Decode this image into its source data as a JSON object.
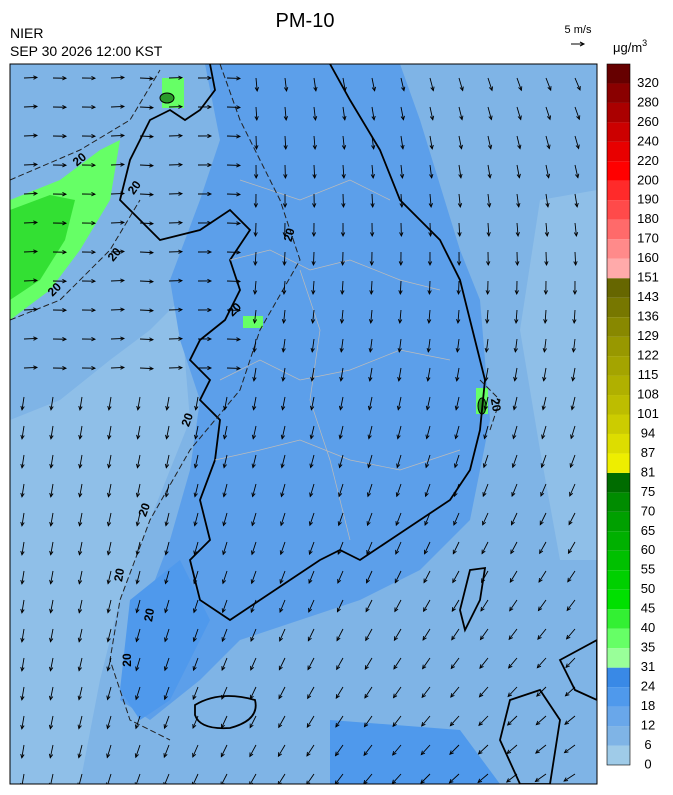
{
  "header": {
    "title": "PM-10",
    "agency": "NIER",
    "time": "SEP 30 2026 12:00 KST",
    "wind_scale": "5 m/s"
  },
  "map": {
    "contour_labels": [
      "20",
      "20",
      "20",
      "20",
      "20",
      "20",
      "20",
      "20",
      "20",
      "20",
      "20",
      "20"
    ]
  },
  "legend": {
    "unit": "μg/m",
    "unit_power": "3",
    "ticks": [
      0,
      6,
      12,
      18,
      24,
      31,
      35,
      40,
      45,
      50,
      55,
      60,
      65,
      70,
      75,
      81,
      87,
      94,
      101,
      108,
      115,
      122,
      129,
      136,
      143,
      151,
      160,
      170,
      180,
      190,
      200,
      220,
      240,
      260,
      280,
      320
    ],
    "colors": [
      "#9fcbe8",
      "#7fb4e6",
      "#69a7ea",
      "#4f99ec",
      "#3989e6",
      "#99ff99",
      "#66ff66",
      "#33f033",
      "#00e000",
      "#00d000",
      "#00c000",
      "#00b000",
      "#00a000",
      "#008c00",
      "#006c00",
      "#eeee00",
      "#dddd00",
      "#cccc00",
      "#bdbd00",
      "#b0b000",
      "#a4a400",
      "#989800",
      "#888800",
      "#777700",
      "#666600",
      "#ffaaaa",
      "#ff8a8a",
      "#ff6a6a",
      "#ff4a4a",
      "#ff2a2a",
      "#ff0000",
      "#e80000",
      "#cc0000",
      "#aa0000",
      "#8a0000",
      "#660000"
    ]
  }
}
